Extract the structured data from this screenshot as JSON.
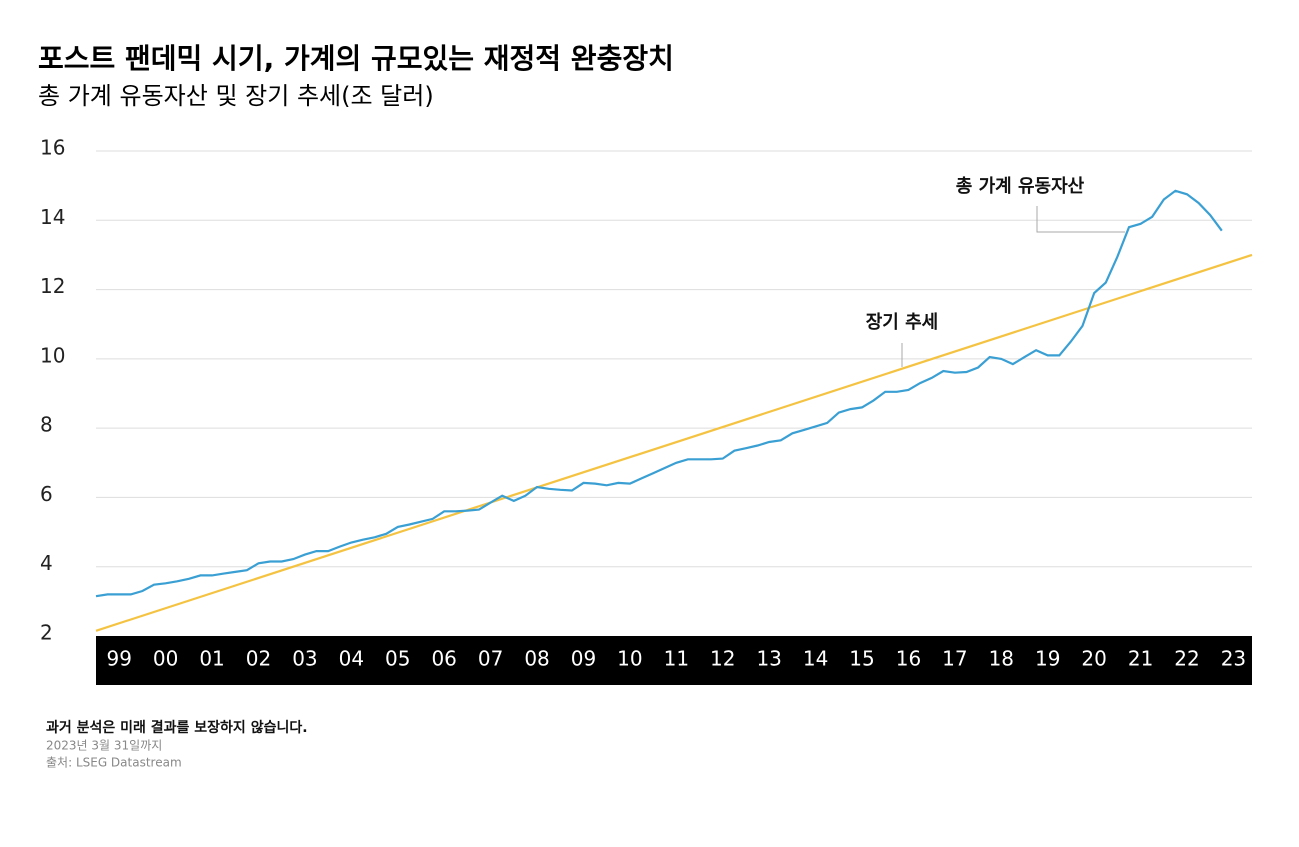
{
  "chart_data": {
    "type": "line",
    "title": "포스트 팬데믹 시기, 가계의 규모있는 재정적 완충장치",
    "subtitle": "총 가계 유동자산 및 장기 추세(조 달러)",
    "xlim": [
      1999,
      2023.9
    ],
    "xticks": [
      {
        "value": 1999.5,
        "label": "99"
      },
      {
        "value": 2000.5,
        "label": "00"
      },
      {
        "value": 2001.5,
        "label": "01"
      },
      {
        "value": 2002.5,
        "label": "02"
      },
      {
        "value": 2003.5,
        "label": "03"
      },
      {
        "value": 2004.5,
        "label": "04"
      },
      {
        "value": 2005.5,
        "label": "05"
      },
      {
        "value": 2006.5,
        "label": "06"
      },
      {
        "value": 2007.5,
        "label": "07"
      },
      {
        "value": 2008.5,
        "label": "08"
      },
      {
        "value": 2009.5,
        "label": "09"
      },
      {
        "value": 2010.5,
        "label": "10"
      },
      {
        "value": 2011.5,
        "label": "11"
      },
      {
        "value": 2012.5,
        "label": "12"
      },
      {
        "value": 2013.5,
        "label": "13"
      },
      {
        "value": 2014.5,
        "label": "14"
      },
      {
        "value": 2015.5,
        "label": "15"
      },
      {
        "value": 2016.5,
        "label": "16"
      },
      {
        "value": 2017.5,
        "label": "17"
      },
      {
        "value": 2018.5,
        "label": "18"
      },
      {
        "value": 2019.5,
        "label": "19"
      },
      {
        "value": 2020.5,
        "label": "20"
      },
      {
        "value": 2021.5,
        "label": "21"
      },
      {
        "value": 2022.5,
        "label": "22"
      },
      {
        "value": 2023.5,
        "label": "23"
      }
    ],
    "ylim": [
      2,
      16
    ],
    "yticks": [
      2,
      4,
      6,
      8,
      10,
      12,
      14,
      16
    ],
    "grid": true,
    "series": [
      {
        "name": "총 가계 유동자산",
        "color": "#3a9fd3",
        "x": [
          1999,
          1999.25,
          1999.5,
          1999.75,
          2000,
          2000.25,
          2000.5,
          2000.75,
          2001,
          2001.25,
          2001.5,
          2001.75,
          2002,
          2002.25,
          2002.5,
          2002.75,
          2003,
          2003.25,
          2003.5,
          2003.75,
          2004,
          2004.25,
          2004.5,
          2004.75,
          2005,
          2005.25,
          2005.5,
          2005.75,
          2006,
          2006.25,
          2006.5,
          2006.75,
          2007,
          2007.25,
          2007.5,
          2007.75,
          2008,
          2008.25,
          2008.5,
          2008.75,
          2009,
          2009.25,
          2009.5,
          2009.75,
          2010,
          2010.25,
          2010.5,
          2010.75,
          2011,
          2011.25,
          2011.5,
          2011.75,
          2012,
          2012.25,
          2012.5,
          2012.75,
          2013,
          2013.25,
          2013.5,
          2013.75,
          2014,
          2014.25,
          2014.5,
          2014.75,
          2015,
          2015.25,
          2015.5,
          2015.75,
          2016,
          2016.25,
          2016.5,
          2016.75,
          2017,
          2017.25,
          2017.5,
          2017.75,
          2018,
          2018.25,
          2018.5,
          2018.75,
          2019,
          2019.25,
          2019.5,
          2019.75,
          2020,
          2020.25,
          2020.5,
          2020.75,
          2021,
          2021.25,
          2021.5,
          2021.75,
          2022,
          2022.25,
          2022.5,
          2022.75,
          2023,
          2023.25
        ],
        "values": [
          3.15,
          3.2,
          3.2,
          3.2,
          3.3,
          3.48,
          3.52,
          3.58,
          3.65,
          3.75,
          3.75,
          3.8,
          3.85,
          3.9,
          4.1,
          4.15,
          4.15,
          4.22,
          4.35,
          4.45,
          4.45,
          4.58,
          4.7,
          4.78,
          4.85,
          4.95,
          5.15,
          5.22,
          5.3,
          5.38,
          5.6,
          5.6,
          5.62,
          5.65,
          5.85,
          6.05,
          5.9,
          6.05,
          6.3,
          6.25,
          6.22,
          6.2,
          6.42,
          6.4,
          6.35,
          6.42,
          6.4,
          6.55,
          6.7,
          6.85,
          7.0,
          7.1,
          7.1,
          7.1,
          7.12,
          7.35,
          7.42,
          7.5,
          7.6,
          7.65,
          7.85,
          7.95,
          8.05,
          8.15,
          8.45,
          8.55,
          8.6,
          8.8,
          9.05,
          9.05,
          9.1,
          9.3,
          9.45,
          9.65,
          9.6,
          9.62,
          9.75,
          10.05,
          10.0,
          9.85,
          10.05,
          10.25,
          10.1,
          10.1,
          10.5,
          10.95,
          11.9,
          12.2,
          12.95,
          13.8,
          13.9,
          14.1,
          14.6,
          14.85,
          14.75,
          14.5,
          14.15,
          13.7
        ]
      },
      {
        "name": "장기 추세",
        "color": "#f5c342",
        "x": [
          1999,
          2023.9
        ],
        "values": [
          2.15,
          13.0
        ]
      }
    ],
    "notes": [
      "과거 분석은 미래 결과를 보장하지 않습니다.",
      "2023년 3월 31일까지",
      "출처: LSEG Datastream"
    ]
  }
}
